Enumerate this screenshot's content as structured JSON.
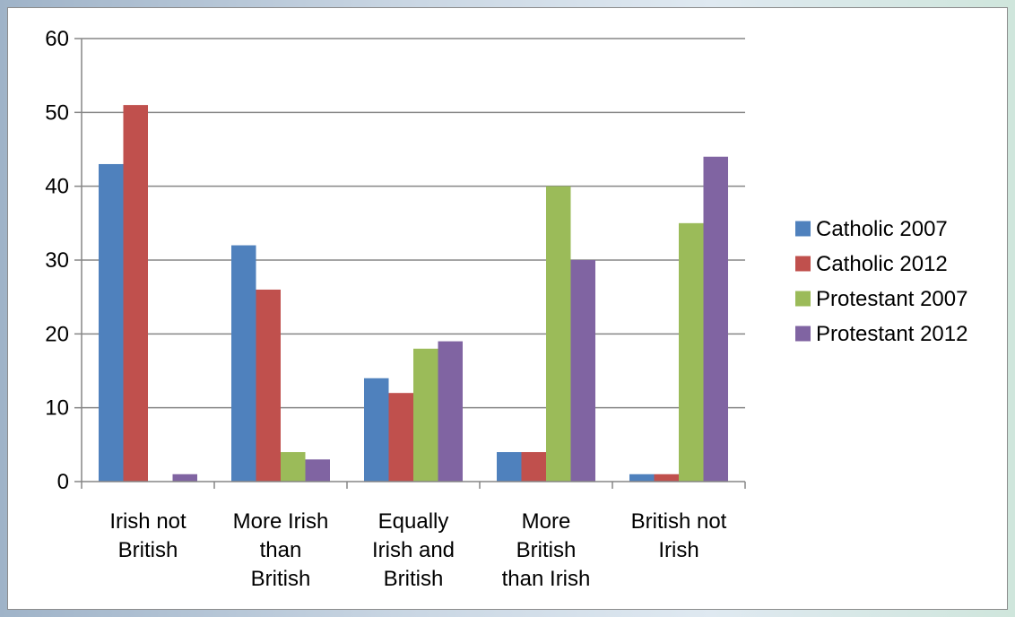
{
  "chart_data": {
    "type": "bar",
    "categories": [
      [
        "Irish not",
        "British"
      ],
      [
        "More Irish",
        "than",
        "British"
      ],
      [
        "Equally",
        "Irish and",
        "British"
      ],
      [
        "More",
        "British",
        "than Irish"
      ],
      [
        "British not",
        "Irish"
      ]
    ],
    "series": [
      {
        "name": "Catholic 2007",
        "color": "#4f81bd",
        "values": [
          43,
          32,
          14,
          4,
          1
        ]
      },
      {
        "name": "Catholic 2012",
        "color": "#c0504d",
        "values": [
          51,
          26,
          12,
          4,
          1
        ]
      },
      {
        "name": "Protestant 2007",
        "color": "#9bbb59",
        "values": [
          0,
          4,
          18,
          40,
          35
        ]
      },
      {
        "name": "Protestant 2012",
        "color": "#8064a2",
        "values": [
          1,
          3,
          19,
          30,
          44
        ]
      }
    ],
    "yticks": [
      0,
      10,
      20,
      30,
      40,
      50,
      60
    ],
    "ylim": [
      0,
      60
    ],
    "grid": true,
    "legend_position": "right"
  }
}
